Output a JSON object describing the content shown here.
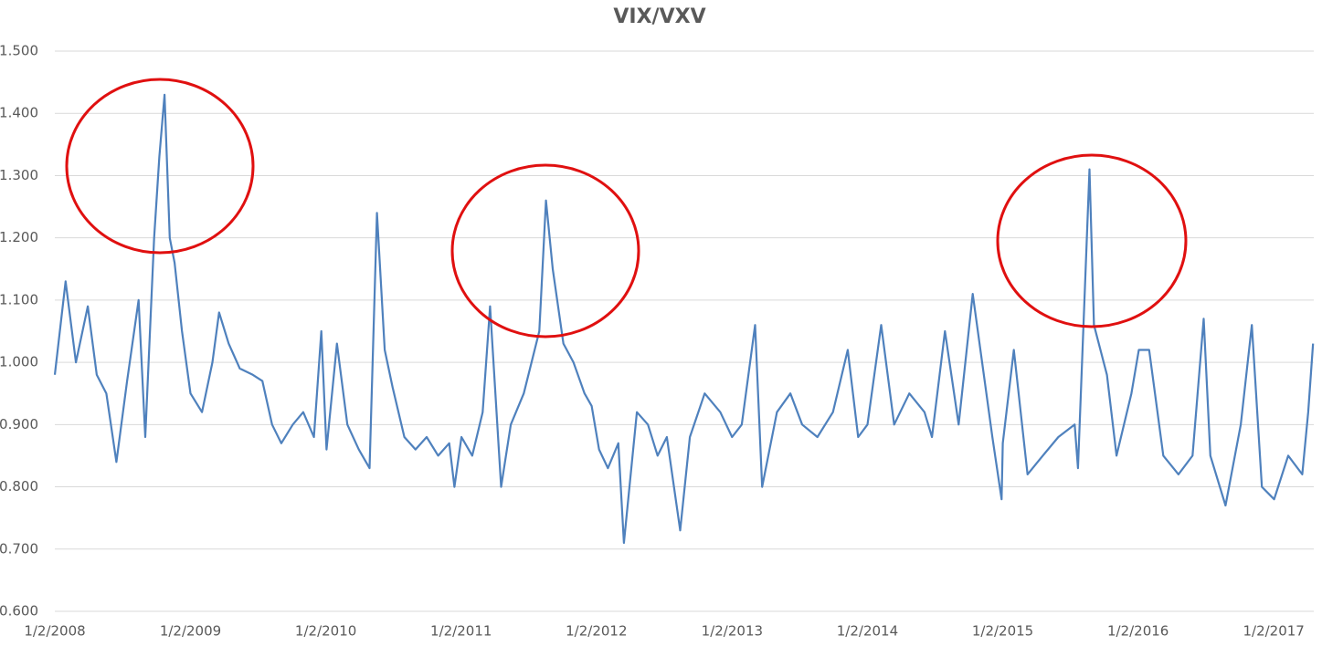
{
  "chart_data": {
    "type": "line",
    "title": "VIX/VXV",
    "x": [
      "1/2/2008",
      "1/31/2008",
      "2/28/2008",
      "3/31/2008",
      "4/24/2008",
      "5/20/2008",
      "6/16/2008",
      "7/15/2008",
      "8/15/2008",
      "9/2/2008",
      "9/26/2008",
      "10/10/2008",
      "10/24/2008",
      "11/7/2008",
      "11/20/2008",
      "12/10/2008",
      "1/2/2009",
      "2/2/2009",
      "3/2/2009",
      "3/20/2009",
      "4/15/2009",
      "5/15/2009",
      "6/19/2009",
      "7/15/2009",
      "8/10/2009",
      "9/4/2009",
      "10/5/2009",
      "11/2/2009",
      "12/1/2009",
      "12/21/2009",
      "1/4/2010",
      "2/1/2010",
      "3/1/2010",
      "4/1/2010",
      "4/30/2010",
      "5/20/2010",
      "6/10/2010",
      "7/1/2010",
      "8/2/2010",
      "9/1/2010",
      "10/1/2010",
      "11/1/2010",
      "12/1/2010",
      "12/15/2010",
      "1/3/2011",
      "2/1/2011",
      "3/1/2011",
      "3/21/2011",
      "4/20/2011",
      "5/16/2011",
      "6/20/2011",
      "8/1/2011",
      "8/19/2011",
      "9/6/2011",
      "10/5/2011",
      "11/1/2011",
      "12/1/2011",
      "12/20/2011",
      "1/9/2012",
      "2/2/2012",
      "3/1/2012",
      "3/16/2012",
      "4/20/2012",
      "5/20/2012",
      "6/15/2012",
      "7/10/2012",
      "8/15/2012",
      "9/10/2012",
      "10/20/2012",
      "12/1/2012",
      "1/2/2013",
      "1/28/2013",
      "3/5/2013",
      "3/24/2013",
      "5/3/2013",
      "6/8/2013",
      "7/10/2013",
      "8/20/2013",
      "10/1/2013",
      "11/10/2013",
      "12/8/2013",
      "1/2/2014",
      "2/8/2014",
      "3/15/2014",
      "4/25/2014",
      "6/5/2014",
      "6/25/2014",
      "7/30/2014",
      "9/5/2014",
      "10/13/2014",
      "12/5/2014",
      "12/30/2014",
      "1/2/2015",
      "2/1/2015",
      "3/10/2015",
      "4/20/2015",
      "6/1/2015",
      "7/15/2015",
      "7/24/2015",
      "8/24/2015",
      "9/5/2015",
      "10/10/2015",
      "11/5/2015",
      "12/15/2015",
      "1/4/2016",
      "2/1/2016",
      "3/10/2016",
      "4/20/2016",
      "5/28/2016",
      "6/27/2016",
      "7/15/2016",
      "8/25/2016",
      "10/5/2016",
      "11/4/2016",
      "12/1/2016",
      "1/3/2017",
      "2/10/2017",
      "3/20/2017",
      "4/5/2017",
      "4/18/2017"
    ],
    "series": [
      {
        "name": "VIX/VXV",
        "color": "#4f81bd",
        "values": [
          0.98,
          1.13,
          1.0,
          1.09,
          0.98,
          0.95,
          0.84,
          0.97,
          1.1,
          0.88,
          1.2,
          1.33,
          1.43,
          1.2,
          1.16,
          1.05,
          0.95,
          0.92,
          1.0,
          1.08,
          1.03,
          0.99,
          0.98,
          0.97,
          0.9,
          0.87,
          0.9,
          0.92,
          0.88,
          1.05,
          0.86,
          1.03,
          0.9,
          0.86,
          0.83,
          1.24,
          1.02,
          0.96,
          0.88,
          0.86,
          0.88,
          0.85,
          0.87,
          0.8,
          0.88,
          0.85,
          0.92,
          1.09,
          0.8,
          0.9,
          0.95,
          1.05,
          1.26,
          1.15,
          1.03,
          1.0,
          0.95,
          0.93,
          0.86,
          0.83,
          0.87,
          0.71,
          0.92,
          0.9,
          0.85,
          0.88,
          0.73,
          0.88,
          0.95,
          0.92,
          0.88,
          0.9,
          1.06,
          0.8,
          0.92,
          0.95,
          0.9,
          0.88,
          0.92,
          1.02,
          0.88,
          0.9,
          1.06,
          0.9,
          0.95,
          0.92,
          0.88,
          1.05,
          0.9,
          1.11,
          0.88,
          0.78,
          0.87,
          1.02,
          0.82,
          0.85,
          0.88,
          0.9,
          0.83,
          1.31,
          1.06,
          0.98,
          0.85,
          0.95,
          1.02,
          1.02,
          0.85,
          0.82,
          0.85,
          1.07,
          0.85,
          0.77,
          0.9,
          1.06,
          0.8,
          0.78,
          0.85,
          0.82,
          0.92,
          1.03
        ]
      }
    ],
    "xlim": [
      "1/2/2008",
      "4/20/2017"
    ],
    "xticks": [
      "1/2/2008",
      "1/2/2009",
      "1/2/2010",
      "1/2/2011",
      "1/2/2012",
      "1/2/2013",
      "1/2/2014",
      "1/2/2015",
      "1/2/2016",
      "1/2/2017"
    ],
    "ylim": [
      0.6,
      1.5
    ],
    "yticks": [
      {
        "value": 0.6,
        "label": "0.600"
      },
      {
        "value": 0.7,
        "label": "0.700"
      },
      {
        "value": 0.8,
        "label": "0.800"
      },
      {
        "value": 0.9,
        "label": "0.900"
      },
      {
        "value": 1.0,
        "label": "1.000"
      },
      {
        "value": 1.1,
        "label": "1.100"
      },
      {
        "value": 1.2,
        "label": "1.200"
      },
      {
        "value": 1.3,
        "label": "1.300"
      },
      {
        "value": 1.4,
        "label": "1.400"
      },
      {
        "value": 1.5,
        "label": "1.500"
      }
    ],
    "grid": true
  }
}
